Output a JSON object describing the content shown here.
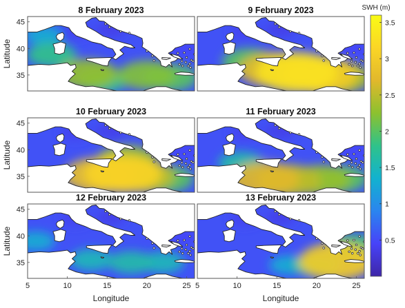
{
  "figure": {
    "colorbar": {
      "title": "SWH (m)",
      "range": [
        0,
        3.6
      ],
      "ticks": [
        0.5,
        1,
        1.5,
        2,
        2.5,
        3,
        3.5
      ],
      "tick_labels": [
        "0.5",
        "1",
        "1.5",
        "2",
        "2.5",
        "3",
        "3.5"
      ],
      "colormap": "parula",
      "colormap_stops": [
        "#3e26a8",
        "#4743f8",
        "#2a85ef",
        "#12b2cf",
        "#2fc28a",
        "#8cc12f",
        "#e1b82c",
        "#fbd626",
        "#f9fb15"
      ]
    },
    "axes": {
      "xlabel": "Longitude",
      "ylabel": "Latitude",
      "xlim": [
        5,
        26
      ],
      "ylim": [
        32,
        46
      ],
      "xticks": [
        5,
        10,
        15,
        20,
        25
      ],
      "xtick_labels": [
        "5",
        "10",
        "15",
        "20",
        "25"
      ],
      "yticks": [
        35,
        40,
        45
      ],
      "ytick_labels": [
        "35",
        "40",
        "45"
      ]
    },
    "colors": {
      "land": "#ffffff",
      "coast": "#222222",
      "frame": "#555555"
    },
    "panels": [
      {
        "title": "8 February 2023",
        "hotspots": [
          {
            "lon": 8.0,
            "lat": 38.8,
            "swh": 1.8
          },
          {
            "lon": 12.5,
            "lat": 35.2,
            "swh": 2.3
          },
          {
            "lon": 14.5,
            "lat": 34.0,
            "swh": 1.8
          },
          {
            "lon": 20.0,
            "lat": 35.0,
            "swh": 2.2
          },
          {
            "lon": 23.0,
            "lat": 34.5,
            "swh": 2.0
          },
          {
            "lon": 7.0,
            "lat": 42.5,
            "swh": 1.3
          }
        ]
      },
      {
        "title": "9 February 2023",
        "hotspots": [
          {
            "lon": 17.5,
            "lat": 35.5,
            "swh": 3.3
          },
          {
            "lon": 20.5,
            "lat": 35.0,
            "swh": 3.0
          },
          {
            "lon": 14.5,
            "lat": 36.0,
            "swh": 2.7
          },
          {
            "lon": 23.0,
            "lat": 34.5,
            "swh": 2.4
          },
          {
            "lon": 11.5,
            "lat": 37.5,
            "swh": 2.0
          }
        ]
      },
      {
        "title": "10 February 2023",
        "hotspots": [
          {
            "lon": 17.0,
            "lat": 35.5,
            "swh": 3.1
          },
          {
            "lon": 14.0,
            "lat": 35.2,
            "swh": 2.8
          },
          {
            "lon": 19.5,
            "lat": 35.0,
            "swh": 2.5
          },
          {
            "lon": 17.5,
            "lat": 38.0,
            "swh": 2.3
          },
          {
            "lon": 22.5,
            "lat": 34.5,
            "swh": 2.0
          }
        ]
      },
      {
        "title": "11 February 2023",
        "hotspots": [
          {
            "lon": 13.5,
            "lat": 34.5,
            "swh": 2.7
          },
          {
            "lon": 16.5,
            "lat": 34.2,
            "swh": 2.5
          },
          {
            "lon": 20.5,
            "lat": 34.3,
            "swh": 2.3
          },
          {
            "lon": 23.0,
            "lat": 34.5,
            "swh": 2.0
          },
          {
            "lon": 10.5,
            "lat": 37.5,
            "swh": 1.6
          }
        ]
      },
      {
        "title": "12 February 2023",
        "hotspots": [
          {
            "lon": 18.0,
            "lat": 35.0,
            "swh": 1.6
          },
          {
            "lon": 13.0,
            "lat": 35.5,
            "swh": 1.5
          },
          {
            "lon": 22.0,
            "lat": 35.0,
            "swh": 1.5
          },
          {
            "lon": 6.0,
            "lat": 39.0,
            "swh": 1.3
          }
        ]
      },
      {
        "title": "13 February 2023",
        "hotspots": [
          {
            "lon": 22.5,
            "lat": 35.2,
            "swh": 3.0
          },
          {
            "lon": 24.5,
            "lat": 38.0,
            "swh": 1.9
          },
          {
            "lon": 20.0,
            "lat": 34.5,
            "swh": 1.7
          },
          {
            "lon": 16.5,
            "lat": 34.5,
            "swh": 1.3
          }
        ]
      }
    ]
  }
}
